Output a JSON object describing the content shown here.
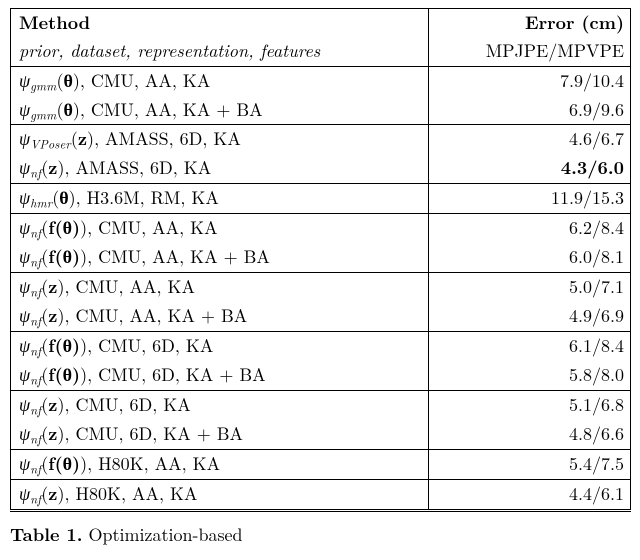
{
  "table": {
    "header": {
      "col1_line1": "Method",
      "col1_line2": "prior, dataset, representation, features",
      "col2_line1": "Error (cm)",
      "col2_line2": "MPJPE/MPVPE"
    },
    "groups": [
      [
        {
          "prior": "gmm",
          "arg": "θ",
          "argbold": true,
          "rest": ", CMU, AA, KA",
          "err": "7.9/10.4",
          "bold": false
        },
        {
          "prior": "gmm",
          "arg": "θ",
          "argbold": true,
          "rest": ", CMU, AA, KA + BA",
          "err": "6.9/9.6",
          "bold": false
        }
      ],
      [
        {
          "prior": "VPoser",
          "arg": "z",
          "argbold": true,
          "rest": ", AMASS, 6D, KA",
          "err": "4.6/6.7",
          "bold": false
        },
        {
          "prior": "nf",
          "arg": "z",
          "argbold": true,
          "rest": ", AMASS, 6D, KA",
          "err": "4.3/6.0",
          "bold": true
        }
      ],
      [
        {
          "prior": "hmr",
          "arg": "θ",
          "argbold": true,
          "rest": ", H3.6M, RM, KA",
          "err": "11.9/15.3",
          "bold": false
        }
      ],
      [
        {
          "prior": "nf",
          "arg": "f(θ)",
          "argbold": true,
          "rest": ", CMU, AA, KA",
          "err": "6.2/8.4",
          "bold": false
        },
        {
          "prior": "nf",
          "arg": "f(θ)",
          "argbold": true,
          "rest": ", CMU, AA, KA + BA",
          "err": "6.0/8.1",
          "bold": false
        }
      ],
      [
        {
          "prior": "nf",
          "arg": "z",
          "argbold": true,
          "rest": ", CMU, AA, KA",
          "err": "5.0/7.1",
          "bold": false
        },
        {
          "prior": "nf",
          "arg": "z",
          "argbold": true,
          "rest": ", CMU, AA, KA + BA",
          "err": "4.9/6.9",
          "bold": false
        }
      ],
      [
        {
          "prior": "nf",
          "arg": "f(θ)",
          "argbold": true,
          "rest": ", CMU, 6D, KA",
          "err": "6.1/8.4",
          "bold": false
        },
        {
          "prior": "nf",
          "arg": "f(θ)",
          "argbold": true,
          "rest": ", CMU, 6D, KA + BA",
          "err": "5.8/8.0",
          "bold": false
        }
      ],
      [
        {
          "prior": "nf",
          "arg": "z",
          "argbold": true,
          "rest": ", CMU, 6D, KA",
          "err": "5.1/6.8",
          "bold": false
        },
        {
          "prior": "nf",
          "arg": "z",
          "argbold": true,
          "rest": ", CMU, 6D, KA + BA",
          "err": "4.8/6.6",
          "bold": false
        }
      ],
      [
        {
          "prior": "nf",
          "arg": "f(θ)",
          "argbold": true,
          "rest": ", H80K, AA, KA",
          "err": "5.4/7.5",
          "bold": false
        }
      ],
      [
        {
          "prior": "nf",
          "arg": "z",
          "argbold": true,
          "rest": ", H80K, AA, KA",
          "err": "4.4/6.1",
          "bold": false
        }
      ]
    ]
  },
  "caption": {
    "label": "Table 1.",
    "text": " Optimization-based"
  }
}
